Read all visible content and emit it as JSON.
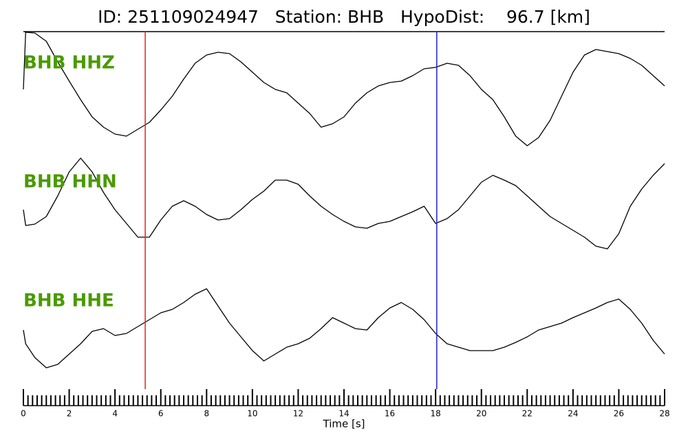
{
  "chart_data": {
    "type": "line",
    "title": "ID: 251109024947   Station: BHB   HypoDist:    96.7 [km]",
    "xlabel": "Time [s]",
    "xlim": [
      0,
      28
    ],
    "xticks": [
      0,
      2,
      4,
      6,
      8,
      10,
      12,
      14,
      16,
      18,
      20,
      22,
      24,
      26,
      28
    ],
    "xminorticks": [
      0.2,
      0.4,
      0.6,
      0.8,
      1,
      1.2,
      1.4,
      1.6,
      1.8,
      2.2,
      2.4,
      2.6,
      2.8,
      3,
      3.2,
      3.4,
      3.6,
      3.8,
      4.2,
      4.4,
      4.6,
      4.8,
      5,
      5.2,
      5.4,
      5.6,
      5.8,
      6.2,
      6.4,
      6.6,
      6.8,
      7,
      7.2,
      7.4,
      7.6,
      7.8,
      8.2,
      8.4,
      8.6,
      8.8,
      9,
      9.2,
      9.4,
      9.6,
      9.8,
      10.2,
      10.4,
      10.6,
      10.8,
      11,
      11.2,
      11.4,
      11.6,
      11.8,
      12.2,
      12.4,
      12.6,
      12.8,
      13,
      13.2,
      13.4,
      13.6,
      13.8,
      14.2,
      14.4,
      14.6,
      14.8,
      15,
      15.2,
      15.4,
      15.6,
      15.8,
      16.2,
      16.4,
      16.6,
      16.8,
      17,
      17.2,
      17.4,
      17.6,
      17.8,
      18.2,
      18.4,
      18.6,
      18.8,
      19,
      19.2,
      19.4,
      19.6,
      19.8,
      20.2,
      20.4,
      20.6,
      20.8,
      21,
      21.2,
      21.4,
      21.6,
      21.8,
      22.2,
      22.4,
      22.6,
      22.8,
      23,
      23.2,
      23.4,
      23.6,
      23.8,
      24.2,
      24.4,
      24.6,
      24.8,
      25,
      25.2,
      25.4,
      25.6,
      25.8,
      26.2,
      26.4,
      26.6,
      26.8,
      27,
      27.2,
      27.4,
      27.6,
      27.8
    ],
    "ylim": [
      -85,
      85
    ],
    "label_color": "#4a9a00",
    "x": [
      0,
      0.1,
      0.5,
      1,
      1.5,
      2,
      2.5,
      3,
      3.5,
      4,
      4.5,
      5,
      5.5,
      6,
      6.5,
      7,
      7.5,
      8,
      8.5,
      9,
      9.5,
      10,
      10.5,
      11,
      11.5,
      12,
      12.5,
      13,
      13.5,
      14,
      14.5,
      15,
      15.5,
      16,
      16.5,
      17,
      17.5,
      18,
      18.5,
      19,
      19.5,
      20,
      20.5,
      21,
      21.5,
      22,
      22.5,
      23,
      23.5,
      24,
      24.5,
      25,
      25.5,
      26,
      26.5,
      27,
      27.5,
      28
    ],
    "series": [
      {
        "name": "BHB HHZ",
        "color": "#000000",
        "values": [
          0,
          83,
          82,
          70,
          40,
          12,
          -15,
          -40,
          -55,
          -65,
          -68,
          -58,
          -48,
          -30,
          -10,
          15,
          38,
          50,
          54,
          52,
          40,
          25,
          10,
          0,
          -5,
          -20,
          -35,
          -55,
          -50,
          -40,
          -20,
          -5,
          5,
          10,
          12,
          20,
          30,
          32,
          38,
          35,
          20,
          0,
          -15,
          -40,
          -68,
          -82,
          -70,
          -45,
          -10,
          25,
          50,
          58,
          55,
          52,
          45,
          35,
          20,
          5
        ]
      },
      {
        "name": "BHB HHN",
        "color": "#000000",
        "values": [
          -5,
          -28,
          -26,
          -15,
          15,
          50,
          70,
          50,
          20,
          -5,
          -25,
          -45,
          -45,
          -20,
          0,
          8,
          0,
          -12,
          -20,
          -18,
          -5,
          10,
          22,
          38,
          38,
          32,
          15,
          0,
          -12,
          -22,
          -30,
          -32,
          -25,
          -22,
          -15,
          -8,
          0,
          -25,
          -18,
          -5,
          15,
          35,
          45,
          38,
          30,
          15,
          0,
          -15,
          -25,
          -35,
          -45,
          -58,
          -62,
          -40,
          0,
          25,
          45,
          62
        ]
      },
      {
        "name": "BHB HHE",
        "color": "#000000",
        "values": [
          -5,
          -25,
          -45,
          -60,
          -55,
          -40,
          -25,
          -7,
          -3,
          -13,
          -10,
          0,
          10,
          20,
          25,
          35,
          47,
          55,
          30,
          5,
          -15,
          -35,
          -50,
          -40,
          -30,
          -25,
          -17,
          -3,
          13,
          5,
          -3,
          -5,
          13,
          27,
          35,
          25,
          10,
          -10,
          -25,
          -30,
          -35,
          -35,
          -35,
          -30,
          -23,
          -15,
          -5,
          0,
          5,
          13,
          20,
          27,
          35,
          40,
          25,
          5,
          -20,
          -40
        ]
      }
    ],
    "markers": [
      {
        "x": 5.32,
        "color": "#e02020"
      },
      {
        "x": 18.05,
        "color": "#2020d0"
      }
    ]
  }
}
